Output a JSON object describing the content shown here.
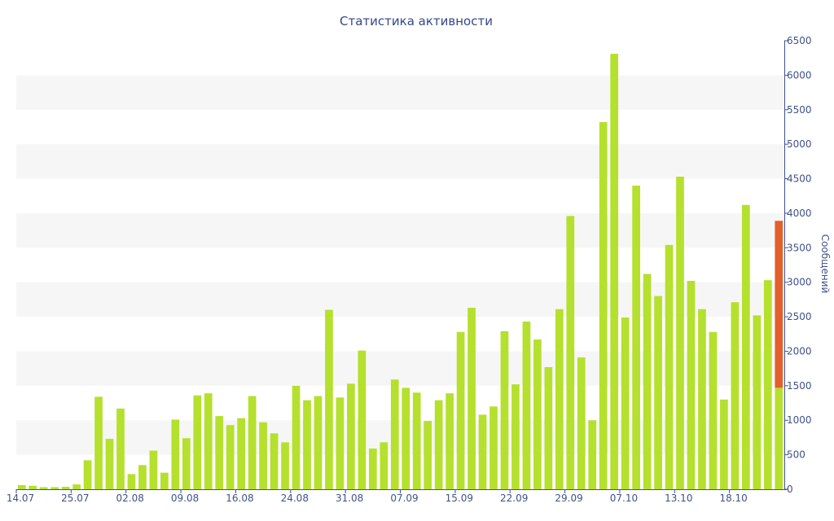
{
  "chart_data": {
    "type": "bar",
    "title": "Статистика активности",
    "xlabel": "",
    "ylabel": "Сообщений",
    "ylim": [
      0,
      6500
    ],
    "ytick_step": 500,
    "y_axis_position": "right",
    "grid": "alternating horizontal bands",
    "x_tick_labels": [
      "14.07",
      "25.07",
      "02.08",
      "09.08",
      "16.08",
      "24.08",
      "31.08",
      "07.09",
      "15.09",
      "22.09",
      "29.09",
      "07.10",
      "13.10",
      "18.10"
    ],
    "x_tick_bar_index": [
      0,
      5,
      10,
      15,
      20,
      25,
      30,
      35,
      40,
      45,
      50,
      55,
      60,
      65
    ],
    "colors": {
      "bar": "#b5e02d",
      "highlight": "#e45f2b",
      "axis": "#3f5287",
      "band": "#f6f6f6"
    },
    "series": [
      {
        "values": [
          60,
          50,
          30,
          30,
          35,
          70,
          420,
          1340,
          730,
          1170,
          220,
          350,
          560,
          240,
          1010,
          740,
          1360,
          1390,
          1060,
          930,
          1030,
          1350,
          970,
          810,
          680,
          1500,
          1290,
          1350,
          2600,
          1330,
          1530,
          2010,
          590,
          680,
          1590,
          1470,
          1400,
          990,
          1290,
          1390,
          2280,
          2630,
          1080,
          1200,
          2290,
          1520,
          2430,
          2170,
          1770,
          2610,
          3960,
          1910,
          1000,
          5320,
          6310,
          2490,
          4400,
          3120,
          2800,
          3540,
          4530,
          3020,
          2610,
          2280,
          1300,
          2710,
          4120,
          2520,
          3030,
          1470
        ]
      }
    ],
    "highlight": {
      "bar_index": 69,
      "from": 1470,
      "to": 3890
    }
  }
}
